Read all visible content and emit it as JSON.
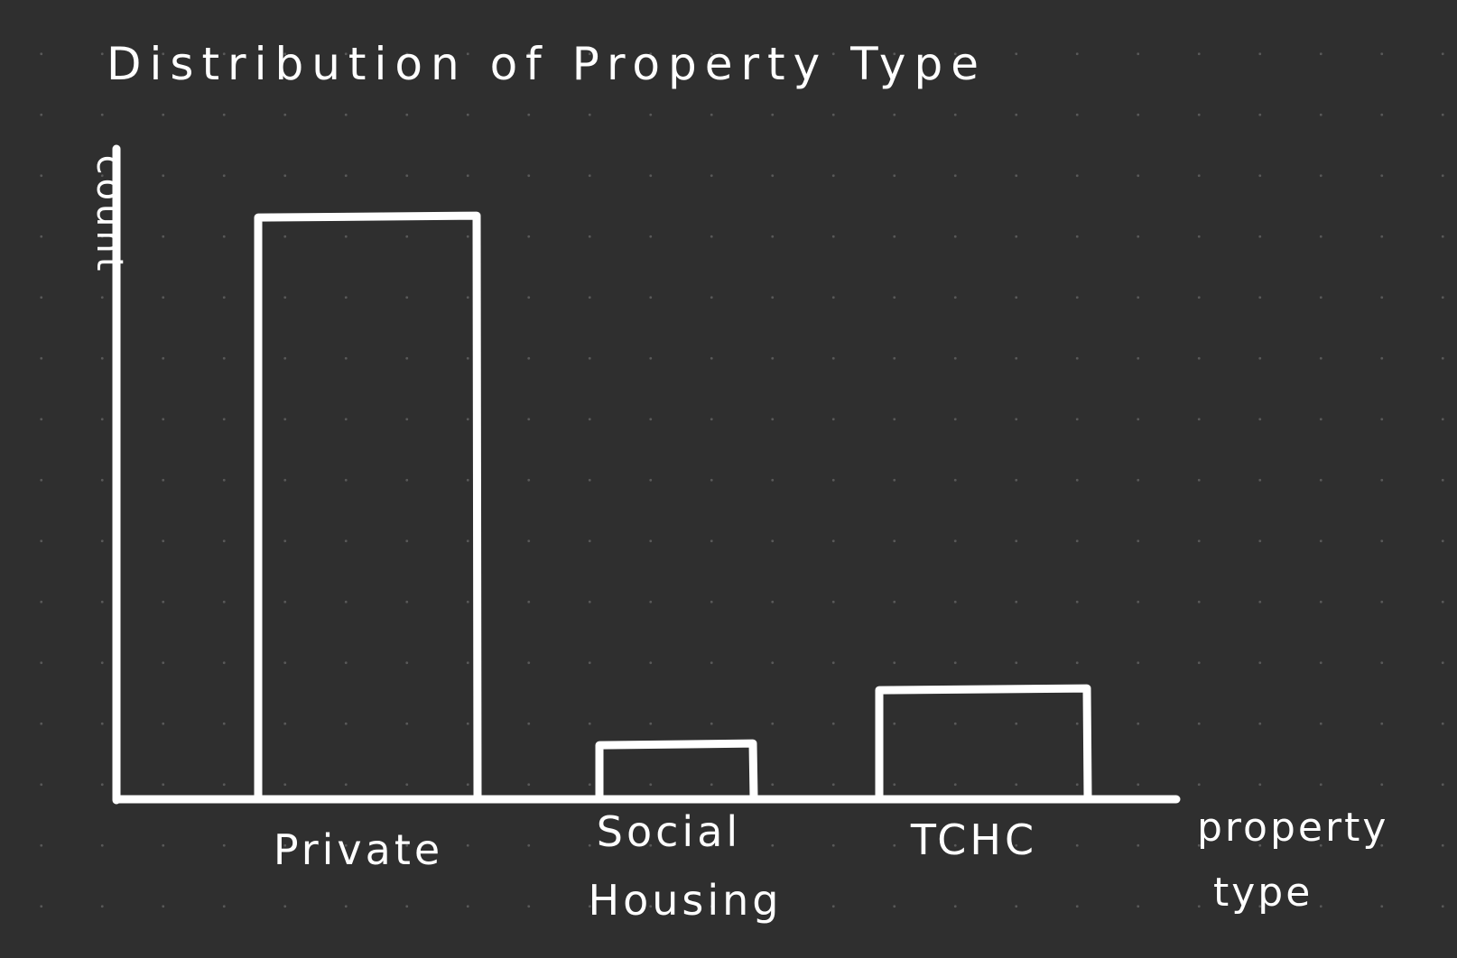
{
  "chart_data": {
    "type": "bar",
    "title": "Distribution of Property Type",
    "xlabel": "property type",
    "ylabel": "count",
    "categories": [
      "Private",
      "Social Housing",
      "TCHC"
    ],
    "values": [
      100,
      9,
      18.5
    ],
    "ylim": [
      0,
      112
    ],
    "grid": false,
    "legend": "none",
    "style": {
      "background": "#2f2f2f",
      "stroke": "#ffffff",
      "bar_fill": "none"
    }
  }
}
